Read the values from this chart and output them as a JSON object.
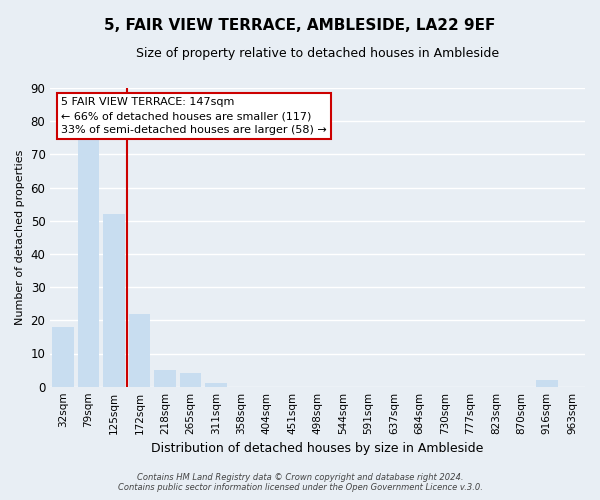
{
  "title": "5, FAIR VIEW TERRACE, AMBLESIDE, LA22 9EF",
  "subtitle": "Size of property relative to detached houses in Ambleside",
  "xlabel": "Distribution of detached houses by size in Ambleside",
  "ylabel": "Number of detached properties",
  "bar_labels": [
    "32sqm",
    "79sqm",
    "125sqm",
    "172sqm",
    "218sqm",
    "265sqm",
    "311sqm",
    "358sqm",
    "404sqm",
    "451sqm",
    "498sqm",
    "544sqm",
    "591sqm",
    "637sqm",
    "684sqm",
    "730sqm",
    "777sqm",
    "823sqm",
    "870sqm",
    "916sqm",
    "963sqm"
  ],
  "bar_values": [
    18,
    75,
    52,
    22,
    5,
    4,
    1,
    0,
    0,
    0,
    0,
    0,
    0,
    0,
    0,
    0,
    0,
    0,
    0,
    2,
    0
  ],
  "bar_color": "#c8ddf0",
  "vline_x": 2.5,
  "vline_color": "#cc0000",
  "ylim": [
    0,
    90
  ],
  "yticks": [
    0,
    10,
    20,
    30,
    40,
    50,
    60,
    70,
    80,
    90
  ],
  "annotation_title": "5 FAIR VIEW TERRACE: 147sqm",
  "annotation_line1": "← 66% of detached houses are smaller (117)",
  "annotation_line2": "33% of semi-detached houses are larger (58) →",
  "annotation_box_facecolor": "#ffffff",
  "annotation_box_edgecolor": "#cc0000",
  "footer1": "Contains HM Land Registry data © Crown copyright and database right 2024.",
  "footer2": "Contains public sector information licensed under the Open Government Licence v.3.0.",
  "background_color": "#e8eef4",
  "grid_color": "#ffffff",
  "title_fontsize": 11,
  "subtitle_fontsize": 9,
  "ylabel_fontsize": 8,
  "xlabel_fontsize": 9
}
